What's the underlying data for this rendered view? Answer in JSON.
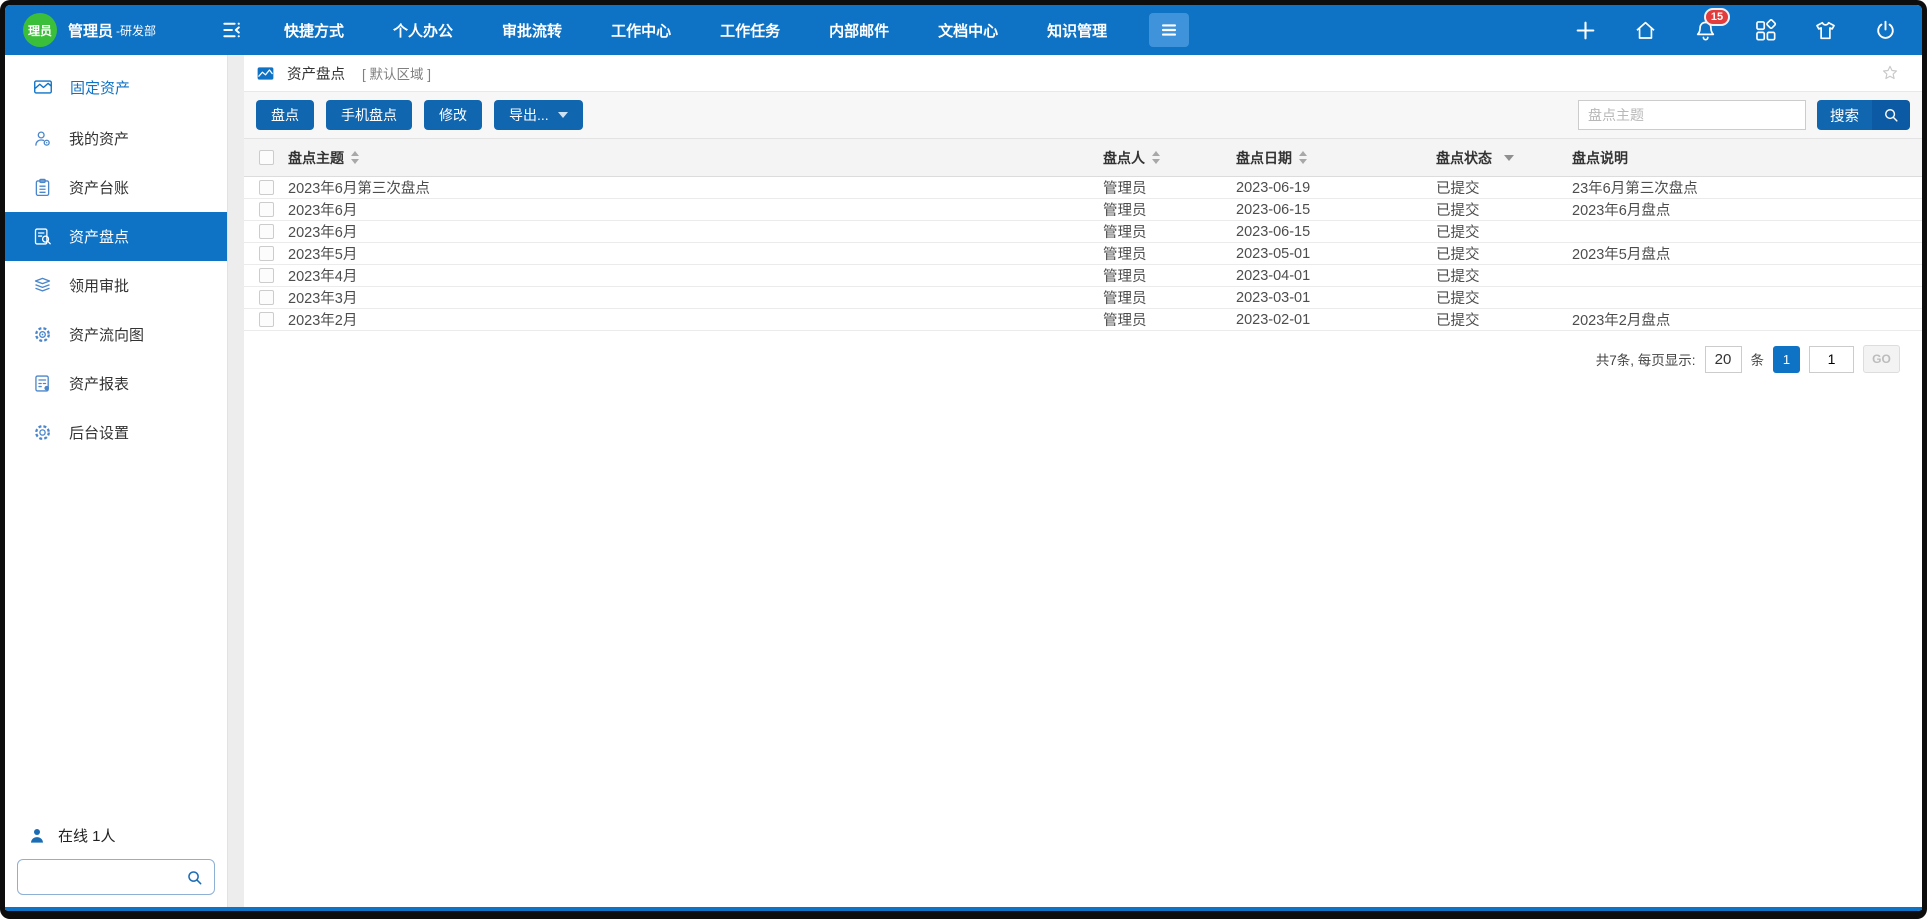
{
  "colors": {
    "topbar_blue": "#0e72c5",
    "menu_button_blue": "#3f93da",
    "button_blue": "#1166b0",
    "button_dark_blue": "#0c59a4",
    "badge_red": "#e23c3c",
    "avatar_green": "#3bbf3b",
    "sidebar_icon_blue": "#4a86ca",
    "link_blue": "#0e72c5"
  },
  "topbar": {
    "avatar_text": "理员",
    "user_name": "管理员",
    "user_dept": "-研发部",
    "nav_items": [
      "快捷方式",
      "个人办公",
      "审批流转",
      "工作中心",
      "工作任务",
      "内部邮件",
      "文档中心",
      "知识管理"
    ],
    "notification_count": "15",
    "right_icons": [
      "plus-icon",
      "home-icon",
      "bell-icon",
      "apps-icon",
      "theme-icon",
      "power-icon"
    ]
  },
  "sidebar": {
    "title": "固定资产",
    "items": [
      {
        "label": "我的资产",
        "icon": "user",
        "active": false
      },
      {
        "label": "资产台账",
        "icon": "ledger",
        "active": false
      },
      {
        "label": "资产盘点",
        "icon": "inventory",
        "active": true
      },
      {
        "label": "领用审批",
        "icon": "approval",
        "active": false
      },
      {
        "label": "资产流向图",
        "icon": "flow",
        "active": false
      },
      {
        "label": "资产报表",
        "icon": "report",
        "active": false
      },
      {
        "label": "后台设置",
        "icon": "settings",
        "active": false
      }
    ],
    "online_text": "在线 1人",
    "search_value": ""
  },
  "main": {
    "breadcrumb": {
      "title": "资产盘点",
      "region": "[ 默认区域 ]"
    },
    "toolbar": {
      "buttons": [
        "盘点",
        "手机盘点",
        "修改"
      ],
      "export_label": "导出...",
      "search_placeholder": "盘点主题",
      "search_label": "搜索"
    },
    "table": {
      "columns": [
        {
          "label": "盘点主题",
          "sort": "both"
        },
        {
          "label": "盘点人",
          "sort": "both"
        },
        {
          "label": "盘点日期",
          "sort": "both"
        },
        {
          "label": "盘点状态",
          "sort": "filter"
        },
        {
          "label": "盘点说明",
          "sort": "none"
        }
      ],
      "rows": [
        {
          "subject": "2023年6月第三次盘点",
          "person": "管理员",
          "date": "2023-06-19",
          "status": "已提交",
          "description": "23年6月第三次盘点"
        },
        {
          "subject": "2023年6月",
          "person": "管理员",
          "date": "2023-06-15",
          "status": "已提交",
          "description": "2023年6月盘点"
        },
        {
          "subject": "2023年6月",
          "person": "管理员",
          "date": "2023-06-15",
          "status": "已提交",
          "description": ""
        },
        {
          "subject": "2023年5月",
          "person": "管理员",
          "date": "2023-05-01",
          "status": "已提交",
          "description": "2023年5月盘点"
        },
        {
          "subject": "2023年4月",
          "person": "管理员",
          "date": "2023-04-01",
          "status": "已提交",
          "description": ""
        },
        {
          "subject": "2023年3月",
          "person": "管理员",
          "date": "2023-03-01",
          "status": "已提交",
          "description": ""
        },
        {
          "subject": "2023年2月",
          "person": "管理员",
          "date": "2023-02-01",
          "status": "已提交",
          "description": "2023年2月盘点"
        }
      ]
    },
    "pagination": {
      "summary": "共7条, 每页显示:",
      "page_size": "20",
      "unit": "条",
      "current_page": "1",
      "page_input": "1",
      "go_label": "GO"
    }
  }
}
